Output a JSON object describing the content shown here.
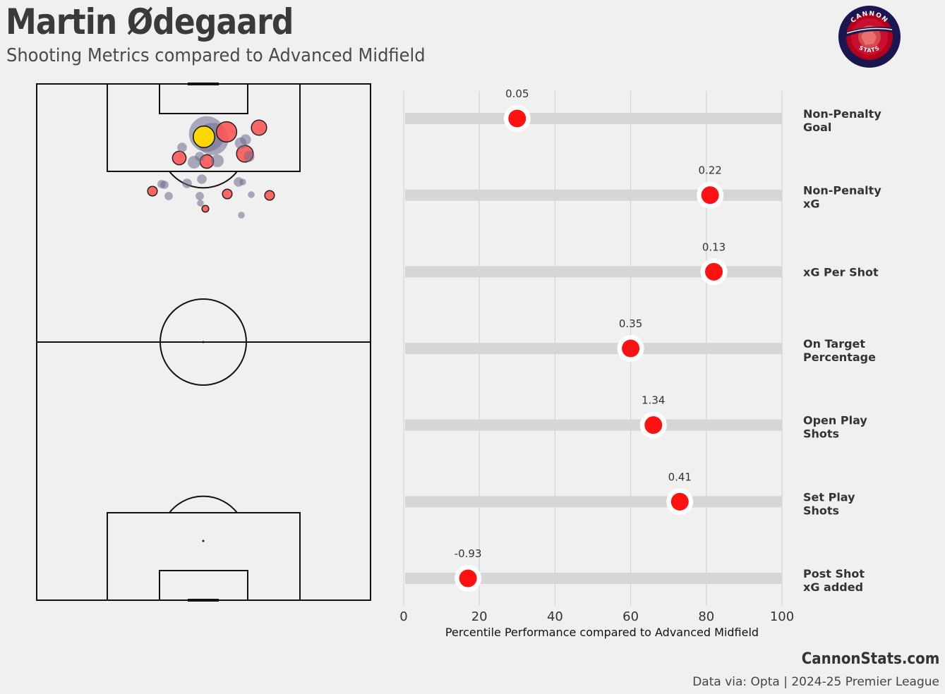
{
  "header": {
    "title": "Martin Ødegaard",
    "subtitle": "Shooting Metrics compared to Advanced Midfield"
  },
  "logo": {
    "top_text": "CANNON",
    "bottom_text": "STATS",
    "colors": {
      "outer": "#1a1650",
      "ring": "#b5001c",
      "inner": "#c8102e",
      "figure": "#e87070"
    }
  },
  "footer": {
    "brand": "CannonStats.com",
    "source": "Data via: Opta | 2024-25 Premier League"
  },
  "colors": {
    "background": "#f0f0f0",
    "bar_track": "#d6d6d6",
    "marker": "#ff1111",
    "goal_shot": "#ff5555",
    "non_goal_shot": "#6b6b8c",
    "highlight_shot": "#ffd700"
  },
  "shot_map": {
    "shots": [
      {
        "type": "non_goal",
        "xg": 0.55
      },
      {
        "type": "non_goal",
        "xg": 0.45
      },
      {
        "type": "goal",
        "xg": 0.18
      },
      {
        "type": "goal",
        "xg": 0.1
      },
      {
        "type": "goal",
        "xg": 0.12
      },
      {
        "type": "goal",
        "xg": 0.08
      },
      {
        "type": "goal",
        "xg": 0.08
      },
      {
        "type": "non_goal",
        "xg": 0.07
      },
      {
        "type": "non_goal",
        "xg": 0.07
      },
      {
        "type": "non_goal",
        "xg": 0.06
      },
      {
        "type": "non_goal",
        "xg": 0.05
      },
      {
        "type": "non_goal",
        "xg": 0.05
      },
      {
        "type": "non_goal",
        "xg": 0.04
      },
      {
        "type": "non_goal",
        "xg": 0.04
      },
      {
        "type": "non_goal",
        "xg": 0.04
      },
      {
        "type": "non_goal",
        "xg": 0.04
      },
      {
        "type": "non_goal",
        "xg": 0.03
      },
      {
        "type": "non_goal",
        "xg": 0.03
      },
      {
        "type": "non_goal",
        "xg": 0.04
      },
      {
        "type": "non_goal",
        "xg": 0.03
      },
      {
        "type": "non_goal",
        "xg": 0.03
      },
      {
        "type": "goal",
        "xg": 0.04
      },
      {
        "type": "goal",
        "xg": 0.04
      },
      {
        "type": "goal",
        "xg": 0.04
      },
      {
        "type": "goal",
        "xg": 0.02
      },
      {
        "type": "non_goal",
        "xg": 0.02
      },
      {
        "type": "non_goal",
        "xg": 0.02
      },
      {
        "type": "non_goal",
        "xg": 0.02
      },
      {
        "type": "non_goal",
        "xg": 0.02
      },
      {
        "type": "highlight",
        "xg": 0.2
      }
    ]
  },
  "chart_data": {
    "type": "scatter",
    "xlabel": "Percentile Performance compared to Advanced Midfield",
    "xlim": [
      0,
      100
    ],
    "xticks": [
      "0",
      "20",
      "40",
      "60",
      "80",
      "100"
    ],
    "grid": true,
    "metrics": [
      {
        "label_line1": "Non-Penalty",
        "label_line2": "Goal",
        "percentile": 30,
        "value": "0.05"
      },
      {
        "label_line1": "Non-Penalty",
        "label_line2": "xG",
        "percentile": 81,
        "value": "0.22"
      },
      {
        "label_line1": "xG Per Shot",
        "label_line2": "",
        "percentile": 82,
        "value": "0.13"
      },
      {
        "label_line1": "On Target",
        "label_line2": "Percentage",
        "percentile": 60,
        "value": "0.35"
      },
      {
        "label_line1": "Open Play",
        "label_line2": "Shots",
        "percentile": 66,
        "value": "1.34"
      },
      {
        "label_line1": "Set Play",
        "label_line2": "Shots",
        "percentile": 73,
        "value": "0.41"
      },
      {
        "label_line1": "Post Shot",
        "label_line2": "xG added",
        "percentile": 17,
        "value": "-0.93"
      }
    ]
  }
}
